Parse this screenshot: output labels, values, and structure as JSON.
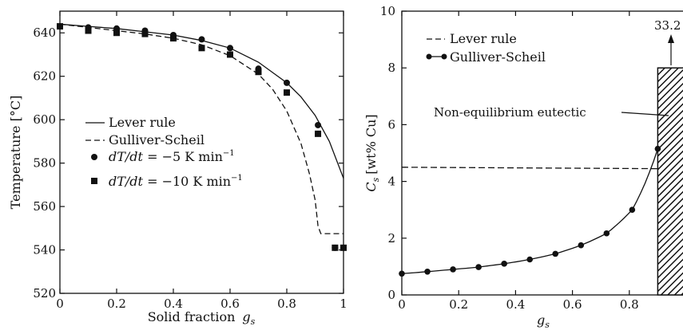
{
  "chart_data": [
    {
      "type": "line",
      "panel": "left",
      "xlabel": "Solid fraction",
      "xlabel_symbol": "g",
      "xlabel_symbol_sub": "s",
      "ylabel": "Temperature [°C]",
      "xlim": [
        0,
        1
      ],
      "ylim": [
        520,
        650
      ],
      "xticks": [
        0,
        0.2,
        0.4,
        0.6,
        0.8,
        1
      ],
      "xtick_labels": [
        "0",
        "0.2",
        "0.4",
        "0.6",
        "0.8",
        "1"
      ],
      "yticks": [
        520,
        540,
        560,
        580,
        600,
        620,
        640
      ],
      "ytick_labels": [
        "520",
        "540",
        "560",
        "580",
        "600",
        "620",
        "640"
      ],
      "grid": false,
      "legend_position": "middle-left",
      "series": [
        {
          "name": "Lever rule",
          "style": "solid line",
          "x": [
            0,
            0.1,
            0.2,
            0.3,
            0.4,
            0.5,
            0.6,
            0.7,
            0.8,
            0.85,
            0.9,
            0.95,
            1.0
          ],
          "y": [
            644,
            643,
            642,
            640.5,
            639,
            636.5,
            633,
            626.5,
            617,
            610.5,
            602,
            590,
            573
          ]
        },
        {
          "name": "Gulliver-Scheil",
          "style": "dashed line",
          "x": [
            0,
            0.1,
            0.2,
            0.3,
            0.4,
            0.5,
            0.6,
            0.7,
            0.75,
            0.8,
            0.85,
            0.88,
            0.9,
            0.91,
            0.92,
            1.0
          ],
          "y": [
            644,
            642.5,
            641,
            639.5,
            637.5,
            634.5,
            629.5,
            621,
            614,
            604,
            589,
            575,
            563,
            551,
            547.5,
            547.5
          ]
        },
        {
          "name": "dT/dt = −5 K min⁻¹",
          "label_parts": [
            "dT/dt",
            " = −5 K min",
            "−1"
          ],
          "style": "circle markers",
          "x": [
            0,
            0.1,
            0.2,
            0.3,
            0.4,
            0.5,
            0.6,
            0.7,
            0.8,
            0.91,
            0.97,
            1.0
          ],
          "y": [
            643,
            642.5,
            642,
            641,
            639,
            637,
            633,
            623.5,
            617,
            597.5,
            541,
            541
          ]
        },
        {
          "name": "dT/dt = −10 K min⁻¹",
          "label_parts": [
            "dT/dt",
            " = −10 K min",
            "−1"
          ],
          "style": "square markers",
          "x": [
            0,
            0.1,
            0.2,
            0.3,
            0.4,
            0.5,
            0.6,
            0.7,
            0.8,
            0.91,
            0.97,
            1.0
          ],
          "y": [
            643,
            641,
            640,
            639.5,
            637.5,
            633,
            630,
            622,
            612.5,
            593.5,
            541,
            541
          ]
        }
      ]
    },
    {
      "type": "line",
      "panel": "right",
      "xlabel": "",
      "xlabel_symbol": "g",
      "xlabel_symbol_sub": "s",
      "ylabel": "[wt% Cu]",
      "ylabel_symbol": "C",
      "ylabel_symbol_sub": "s",
      "xlim": [
        0,
        1
      ],
      "ylim": [
        0,
        10
      ],
      "xticks": [
        0,
        0.2,
        0.4,
        0.6,
        0.8
      ],
      "xtick_labels": [
        "0",
        "0.2",
        "0.4",
        "0.6",
        "0.8"
      ],
      "yticks": [
        0,
        2,
        4,
        6,
        8,
        10
      ],
      "ytick_labels": [
        "0",
        "2",
        "4",
        "6",
        "8",
        "10"
      ],
      "grid": false,
      "legend_position": "top-left",
      "series": [
        {
          "name": "Lever rule",
          "style": "dashed line",
          "x": [
            0,
            0.9
          ],
          "y": [
            4.5,
            4.45
          ]
        },
        {
          "name": "Gulliver-Scheil",
          "style": "solid line with circle markers",
          "x": [
            0,
            0.09,
            0.18,
            0.27,
            0.36,
            0.45,
            0.54,
            0.63,
            0.72,
            0.81,
            0.9
          ],
          "y": [
            0.75,
            0.82,
            0.9,
            0.98,
            1.1,
            1.25,
            1.45,
            1.75,
            2.17,
            3.0,
            5.15
          ]
        }
      ],
      "eutectic_bar": {
        "x_from": 0.9,
        "x_to": 1.0,
        "height": 8.0,
        "fill": "hatched"
      },
      "annotations": [
        {
          "text": "Non-equilibrium eutectic",
          "points_to": "eutectic bar"
        },
        {
          "text": "33.2",
          "points_to": "off-scale eutectic composition (arrow up)"
        }
      ]
    }
  ]
}
